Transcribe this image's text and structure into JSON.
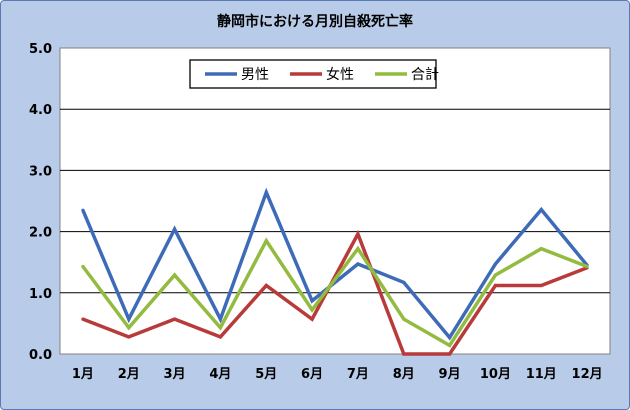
{
  "chart_data": {
    "type": "line",
    "title": "静岡市における月別自殺死亡率",
    "categories": [
      "1月",
      "2月",
      "3月",
      "4月",
      "5月",
      "6月",
      "7月",
      "8月",
      "9月",
      "10月",
      "11月",
      "12月"
    ],
    "series": [
      {
        "name": "男性",
        "color": "#3e6bb8",
        "values": [
          2.35,
          0.57,
          2.04,
          0.57,
          2.64,
          0.87,
          1.47,
          1.17,
          0.27,
          1.47,
          2.36,
          1.45
        ]
      },
      {
        "name": "女性",
        "color": "#b83a3a",
        "values": [
          0.57,
          0.28,
          0.57,
          0.28,
          1.12,
          0.57,
          1.96,
          0.0,
          0.0,
          1.12,
          1.12,
          1.41
        ]
      },
      {
        "name": "合計",
        "color": "#92bb3f",
        "values": [
          1.43,
          0.43,
          1.29,
          0.43,
          1.85,
          0.72,
          1.72,
          0.57,
          0.14,
          1.29,
          1.72,
          1.43
        ]
      }
    ],
    "ylim": [
      0,
      5
    ],
    "yticks": [
      "0.0",
      "1.0",
      "2.0",
      "3.0",
      "4.0",
      "5.0"
    ],
    "grid": true,
    "legend_position": "top-center"
  }
}
